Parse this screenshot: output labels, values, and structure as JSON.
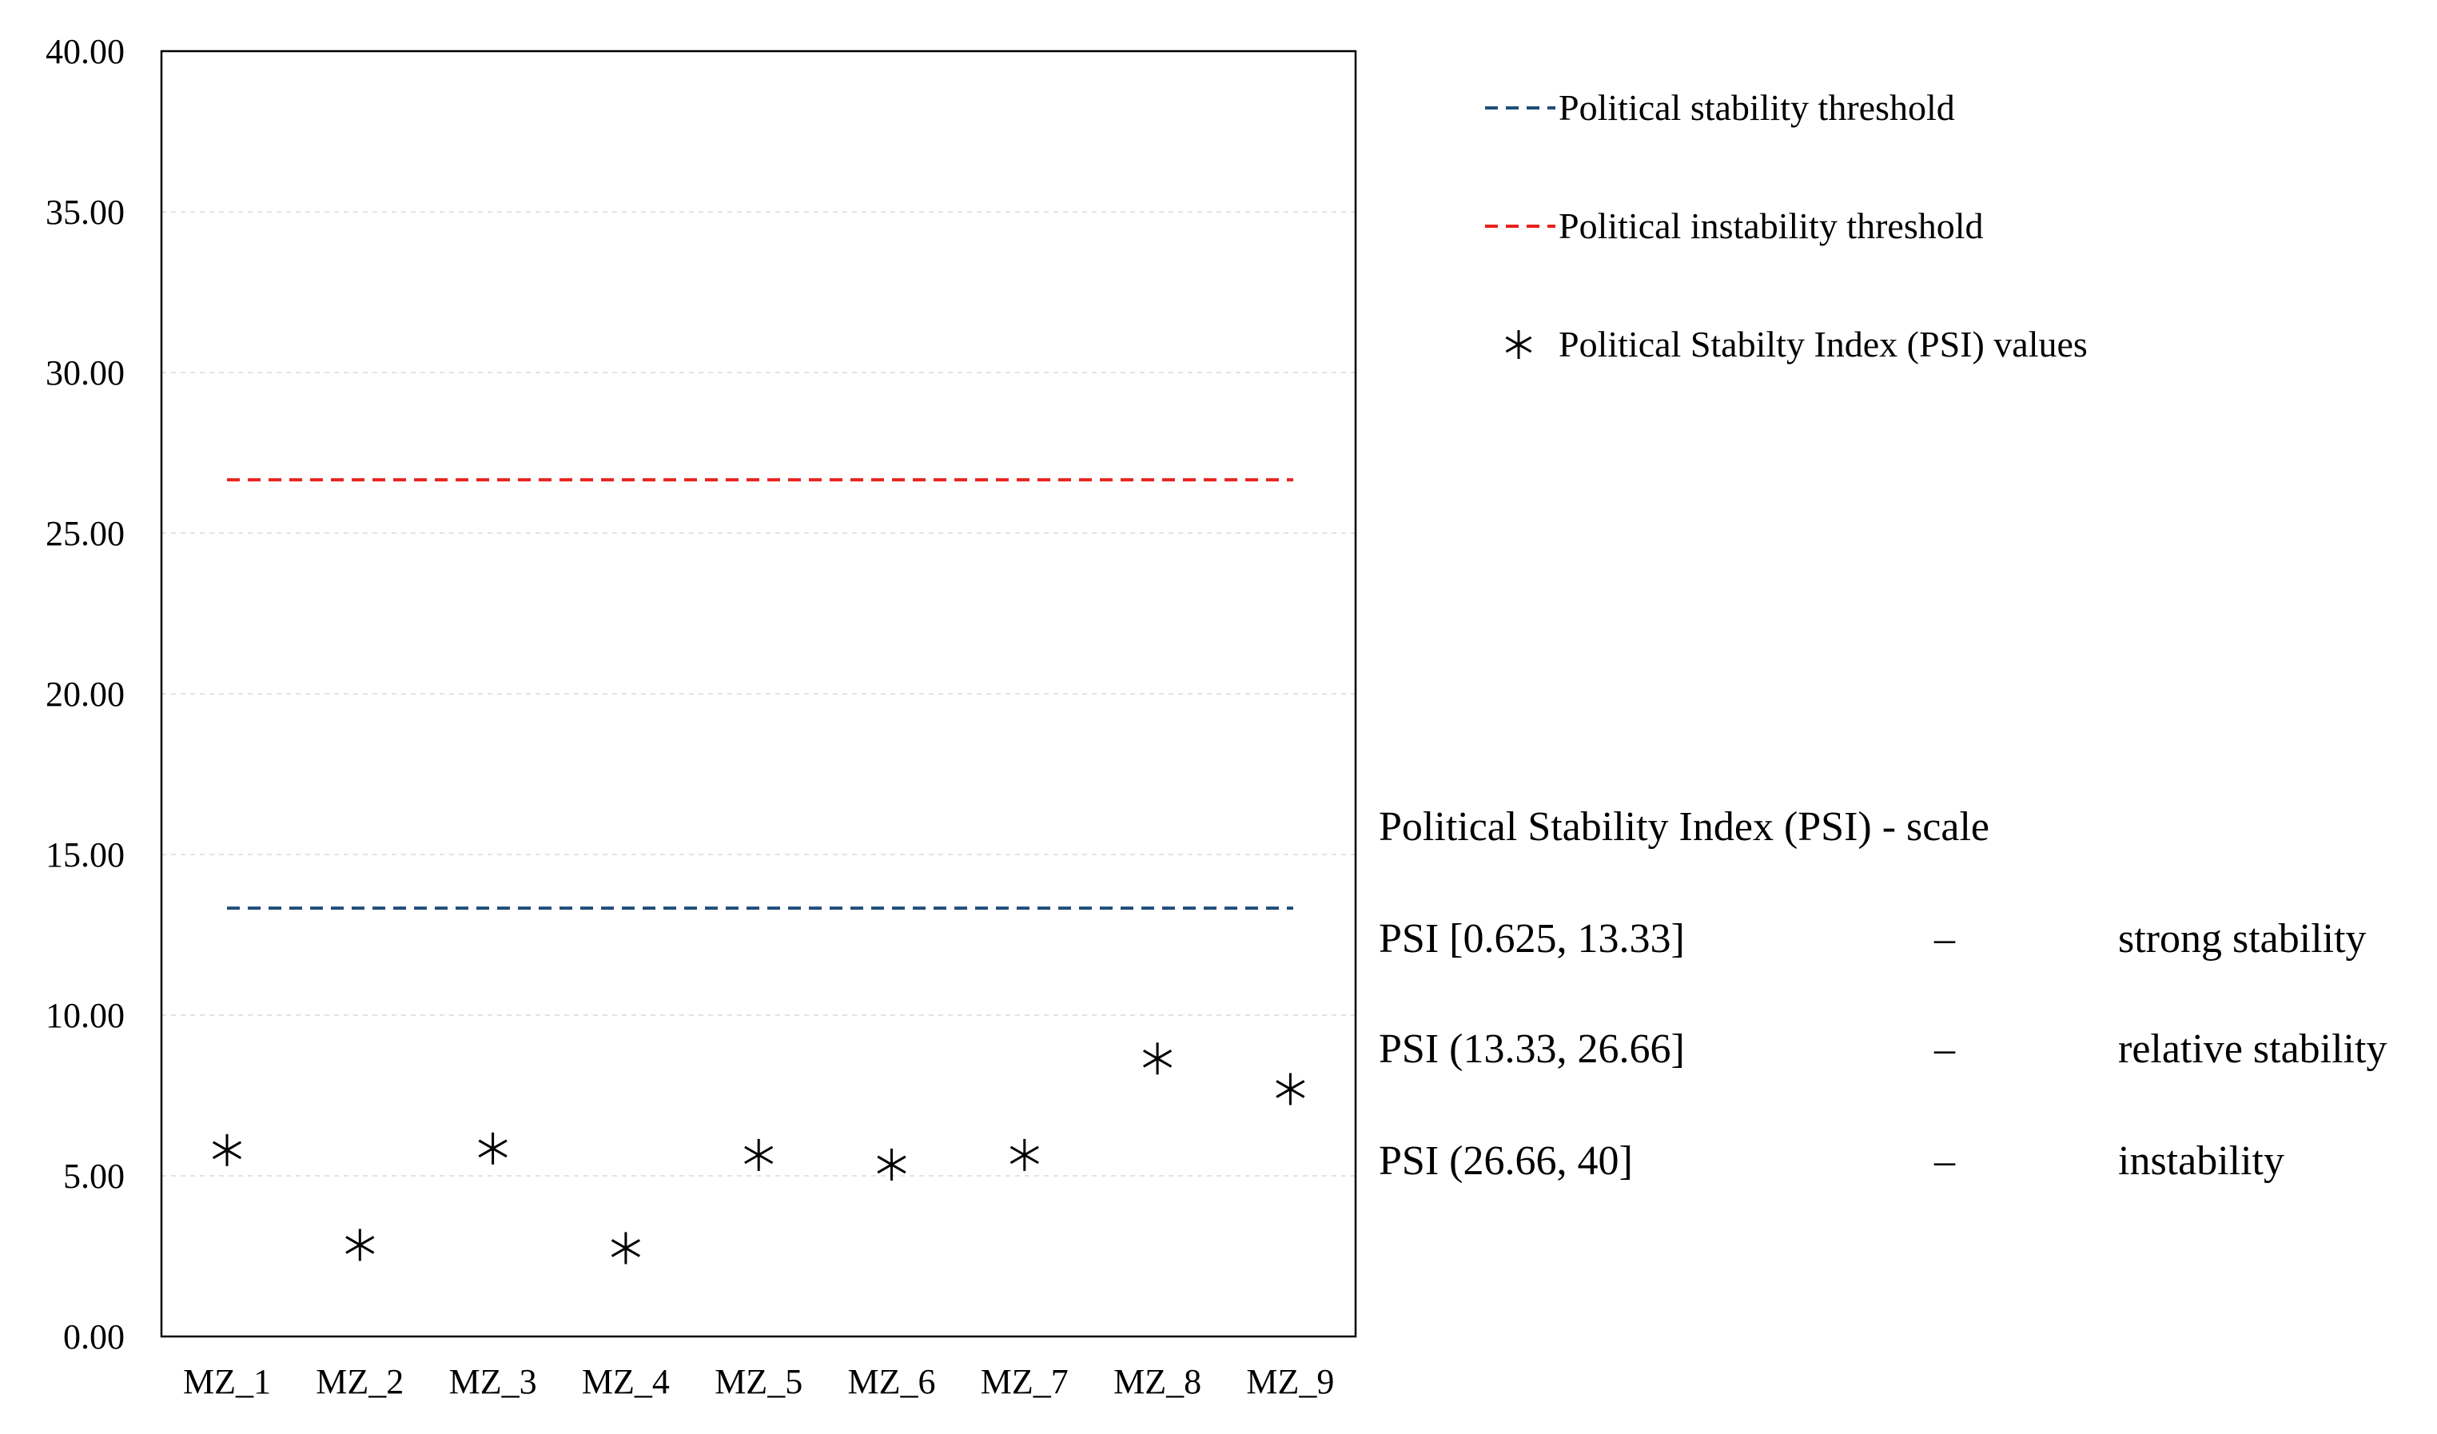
{
  "chart_data": {
    "type": "scatter",
    "categories": [
      "MZ_1",
      "MZ_2",
      "MZ_3",
      "MZ_4",
      "MZ_5",
      "MZ_6",
      "MZ_7",
      "MZ_8",
      "MZ_9"
    ],
    "y_ticks": [
      "0.00",
      "5.00",
      "10.00",
      "15.00",
      "20.00",
      "25.00",
      "30.00",
      "35.00",
      "40.00"
    ],
    "ylim": [
      0,
      40
    ],
    "grid": true,
    "legend_position": "top-right",
    "series": [
      {
        "name": "Political Stabilty Index (PSI) values",
        "marker": "asterisk",
        "color": "#000000",
        "values": [
          5.8,
          2.85,
          5.85,
          2.75,
          5.65,
          5.35,
          5.65,
          8.65,
          7.7
        ]
      }
    ],
    "thresholds": [
      {
        "name": "Political stability threshold",
        "value": 13.33,
        "color": "#1f4e79",
        "style": "dashed"
      },
      {
        "name": "Political instability threshold",
        "value": 26.66,
        "color": "#e8211d",
        "style": "dashed"
      }
    ]
  },
  "scale": {
    "title": "Political Stability Index (PSI) - scale",
    "rows": [
      {
        "range": "PSI [0.625, 13.33]",
        "dash": "–",
        "label": "strong stability"
      },
      {
        "range": "PSI (13.33, 26.66]",
        "dash": "–",
        "label": "relative stability"
      },
      {
        "range": "PSI (26.66, 40]",
        "dash": "–",
        "label": "instability"
      }
    ]
  }
}
